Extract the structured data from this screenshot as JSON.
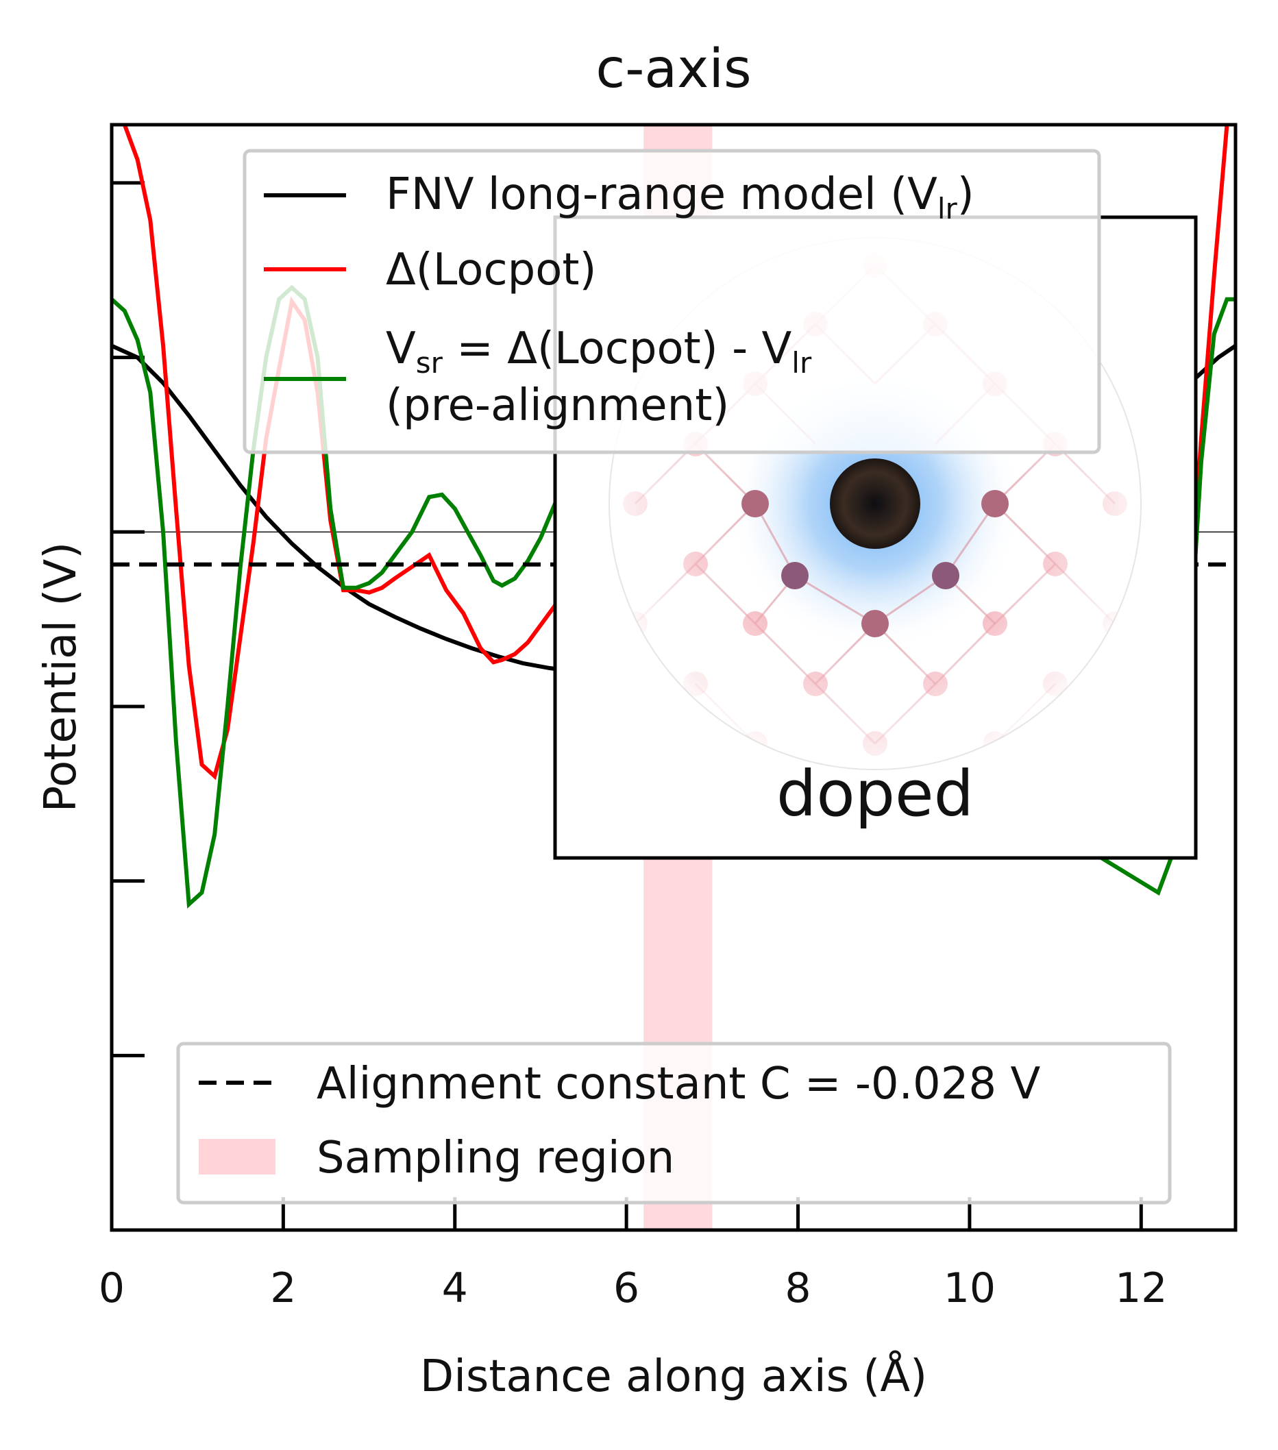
{
  "chart_data": {
    "type": "line",
    "title": "c-axis",
    "xlabel": "Distance along axis (Å)",
    "ylabel": "Potential (V)",
    "xlim": [
      0,
      13.1
    ],
    "ylim": [
      -0.6,
      0.35
    ],
    "xticks": [
      0,
      2,
      4,
      6,
      8,
      10,
      12
    ],
    "xtick_labels": [
      "0",
      "2",
      "4",
      "6",
      "8",
      "10",
      "12"
    ],
    "yticks": [
      -0.6,
      -0.45,
      -0.3,
      -0.15,
      0.0,
      0.15,
      0.3
    ],
    "ytick_labels_visible": false,
    "grid": false,
    "zero_line": 0.0,
    "series": [
      {
        "name": "FNV long-range model (V_lr)",
        "label_main": "FNV long-range model (V",
        "label_sub": "lr",
        "label_tail": ")",
        "color": "#000000",
        "x": [
          0,
          0.3,
          0.6,
          0.9,
          1.2,
          1.5,
          1.8,
          2.1,
          2.4,
          2.7,
          3.0,
          3.3,
          3.6,
          3.9,
          4.2,
          4.5,
          4.8,
          5.1,
          5.4,
          5.7,
          6.0,
          6.2,
          12.6,
          12.9,
          13.1
        ],
        "y": [
          0.16,
          0.15,
          0.128,
          0.1,
          0.07,
          0.04,
          0.013,
          -0.01,
          -0.03,
          -0.047,
          -0.062,
          -0.073,
          -0.083,
          -0.092,
          -0.1,
          -0.107,
          -0.113,
          -0.117,
          -0.12,
          -0.122,
          -0.124,
          -0.124,
          0.13,
          0.15,
          0.16
        ]
      },
      {
        "name": "Δ(Locpot)",
        "color": "#ff0000",
        "x": [
          0,
          0.15,
          0.3,
          0.45,
          0.6,
          0.75,
          0.9,
          1.05,
          1.2,
          1.35,
          1.5,
          1.65,
          1.8,
          1.95,
          2.1,
          2.25,
          2.4,
          2.55,
          2.7,
          2.85,
          3.0,
          3.15,
          3.3,
          3.5,
          3.7,
          3.9,
          4.1,
          4.3,
          4.45,
          4.55,
          4.7,
          4.85,
          5.0,
          5.2,
          5.4,
          5.6,
          5.8,
          6.0,
          6.2,
          12.2,
          12.4,
          12.55,
          12.7,
          12.85,
          13.0,
          13.1
        ],
        "y": [
          0.365,
          0.35,
          0.32,
          0.268,
          0.16,
          0.02,
          -0.115,
          -0.2,
          -0.21,
          -0.17,
          -0.09,
          -0.01,
          0.08,
          0.14,
          0.198,
          0.182,
          0.12,
          0.01,
          -0.05,
          -0.05,
          -0.052,
          -0.048,
          -0.04,
          -0.03,
          -0.02,
          -0.05,
          -0.07,
          -0.1,
          -0.112,
          -0.11,
          -0.105,
          -0.095,
          -0.08,
          -0.06,
          -0.04,
          -0.03,
          -0.035,
          -0.06,
          -0.08,
          -0.21,
          -0.17,
          -0.08,
          0.08,
          0.22,
          0.35,
          0.365
        ]
      },
      {
        "name": "V_sr = Δ(Locpot) - V_lr (pre-alignment)",
        "label_main": "V",
        "label_sub": "sr",
        "label_mid": " = Δ(Locpot) - V",
        "label_sub2": "lr",
        "label_line2": "(pre-alignment)",
        "color": "#008000",
        "x": [
          0,
          0.15,
          0.3,
          0.45,
          0.6,
          0.75,
          0.9,
          1.05,
          1.2,
          1.35,
          1.5,
          1.65,
          1.8,
          1.95,
          2.1,
          2.25,
          2.4,
          2.55,
          2.7,
          2.85,
          3.0,
          3.15,
          3.3,
          3.5,
          3.7,
          3.85,
          4.0,
          4.15,
          4.3,
          4.45,
          4.55,
          4.7,
          4.85,
          5.0,
          5.2,
          5.4,
          5.6,
          5.8,
          6.0,
          6.2,
          12.2,
          12.4,
          12.55,
          12.7,
          12.85,
          13.0,
          13.1
        ],
        "y": [
          0.2,
          0.19,
          0.165,
          0.12,
          0.0,
          -0.18,
          -0.32,
          -0.31,
          -0.26,
          -0.15,
          -0.03,
          0.07,
          0.15,
          0.2,
          0.21,
          0.2,
          0.15,
          0.02,
          -0.048,
          -0.048,
          -0.044,
          -0.035,
          -0.02,
          0.0,
          0.03,
          0.032,
          0.02,
          0.0,
          -0.02,
          -0.042,
          -0.046,
          -0.04,
          -0.025,
          -0.005,
          0.03,
          0.05,
          0.03,
          0.0,
          -0.01,
          -0.04,
          -0.31,
          -0.27,
          -0.12,
          0.06,
          0.17,
          0.2,
          0.2
        ]
      },
      {
        "name": "Alignment constant C = -0.028 V",
        "color": "#000000",
        "style": "dashed",
        "y_constant": -0.028
      }
    ],
    "sampling_region": {
      "name": "Sampling region",
      "x_range": [
        6.2,
        7.0
      ],
      "color": "#ffc0c6"
    },
    "inset": {
      "label": "doped",
      "description_icon": "doped-crystal-lattice-icon",
      "dopant_color": "#2a2420",
      "atom_color": "#d98a96",
      "glow_color": "#7fb8f2"
    },
    "legend_upper_placement": "top-center",
    "legend_lower_placement": "bottom-center",
    "legend_lower_items": [
      "Alignment constant C = -0.028 V",
      "Sampling region"
    ]
  }
}
